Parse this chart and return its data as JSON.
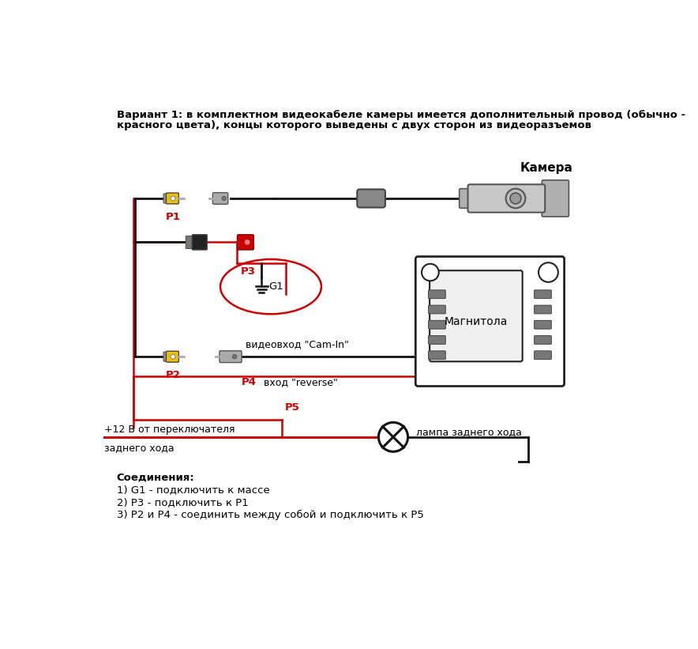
{
  "bg_color": "#ffffff",
  "title_line1": "Вариант 1: в комплектном видеокабеле камеры имеется дополнительный провод (обычно -",
  "title_line2": "красного цвета), концы которого выведены с двух сторон из видеоразъемов",
  "connections_title": "Соединения:",
  "connections": [
    "1) G1 - подключить к массе",
    "2) P3 - подключить к P1",
    "3) P2 и P4 - соединить между собой и подключить к Р5"
  ],
  "label_camera": "Камера",
  "label_magnitola": "Магнитола",
  "label_lamp": "лампа заднего хода",
  "label_plus12_1": "+12 В от переключателя",
  "label_plus12_2": "заднего хода",
  "label_videovhod": "видеовход \"Cam-In\"",
  "label_reverse": "вход \"reverse\"",
  "label_P1": "P1",
  "label_P2": "P2",
  "label_P3": "P3",
  "label_P4": "P4",
  "label_P5": "P5",
  "label_G1": "G1",
  "red": "#cc0000",
  "black": "#111111",
  "yellow": "#f0c000",
  "wire_lw": 2.0,
  "red_wire_lw": 1.8
}
